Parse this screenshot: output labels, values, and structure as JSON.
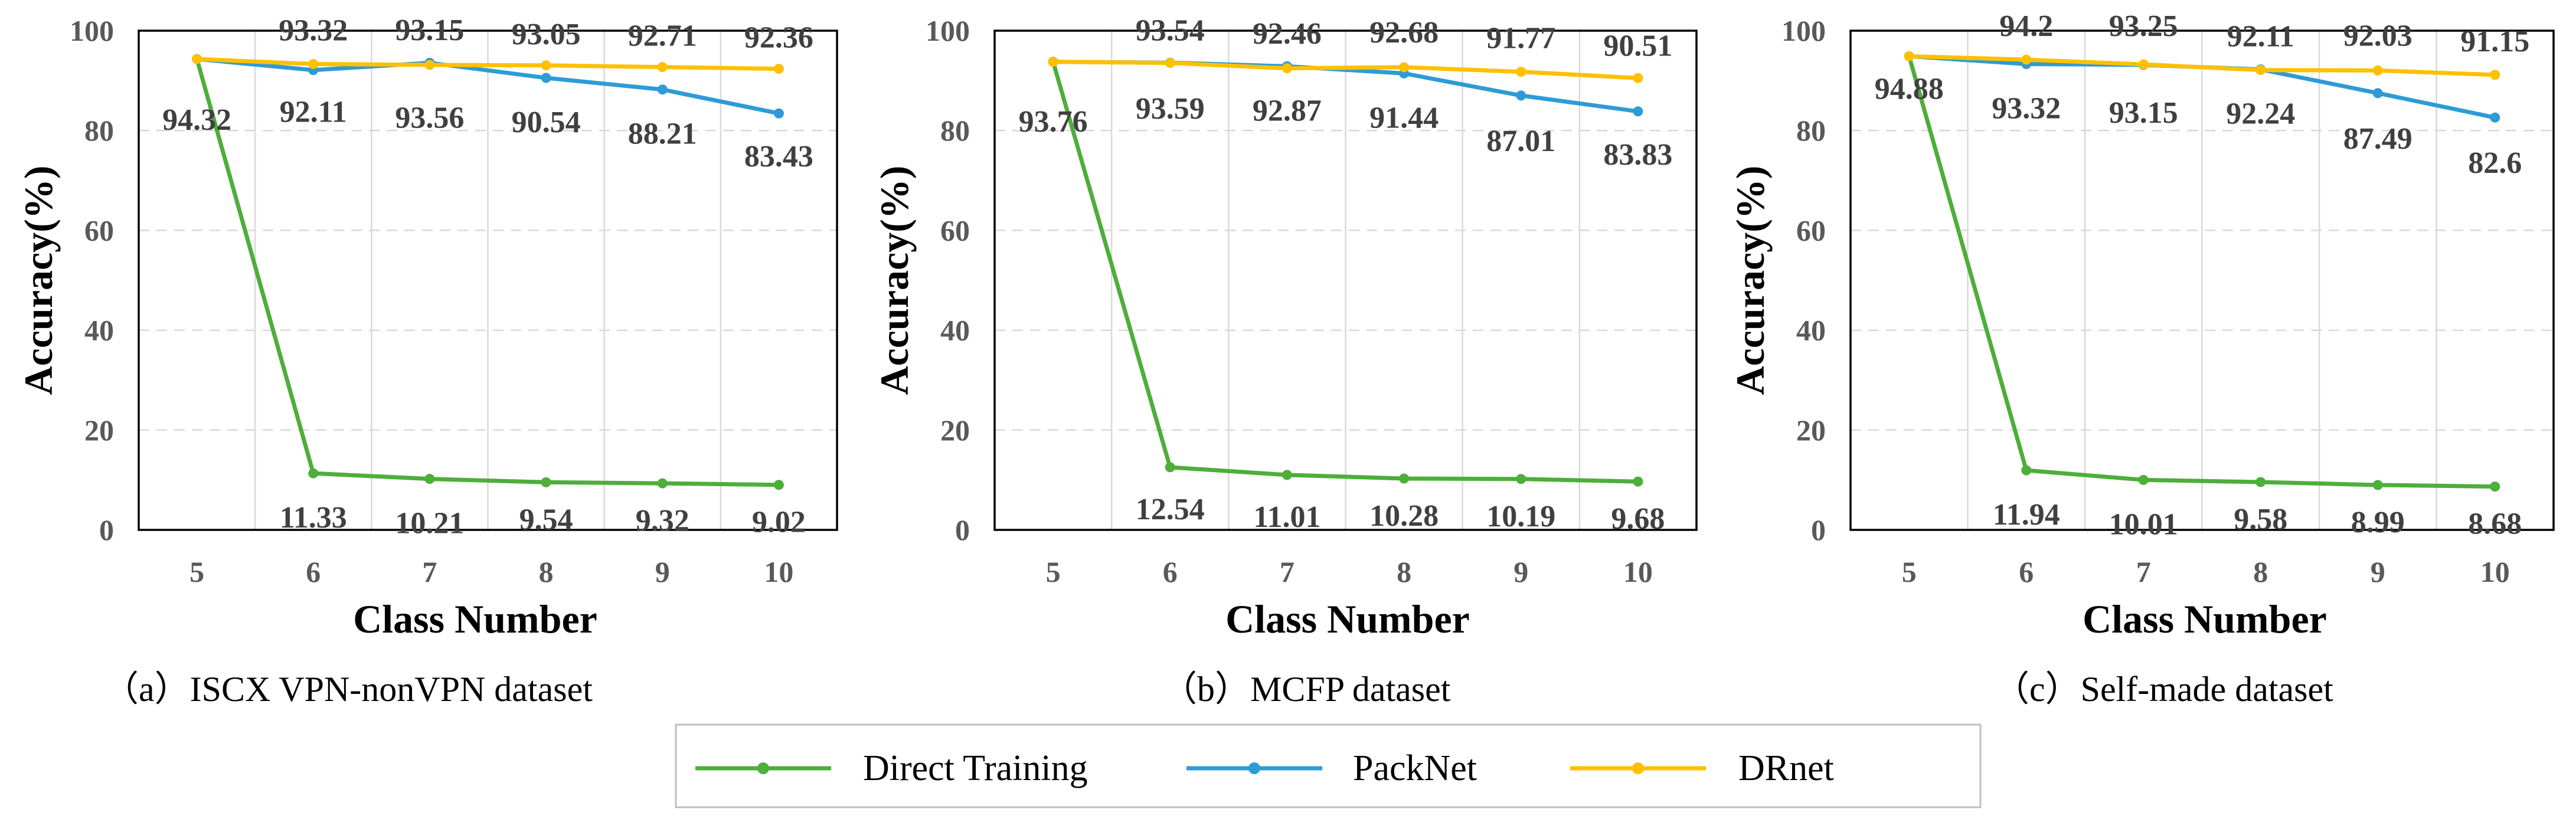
{
  "colors": {
    "direct_training": "#4DAE3A",
    "packnet": "#2E9BD6",
    "drnet": "#FFC000",
    "grid": "#D9D9D9",
    "axis": "#000000"
  },
  "legend": {
    "items": [
      {
        "key": "direct_training",
        "label": "Direct Training"
      },
      {
        "key": "packnet",
        "label": "PackNet"
      },
      {
        "key": "drnet",
        "label": "DRnet"
      }
    ]
  },
  "chart_data": [
    {
      "type": "line",
      "caption": "（a）ISCX VPN-nonVPN dataset",
      "xlabel": "Class Number",
      "ylabel": "Accuracy(%)",
      "categories": [
        "5",
        "6",
        "7",
        "8",
        "9",
        "10"
      ],
      "y_ticks": [
        "0",
        "20",
        "40",
        "60",
        "80",
        "100"
      ],
      "ylim": [
        0,
        100
      ],
      "grid": true,
      "series": [
        {
          "key": "direct_training",
          "name": "Direct Training",
          "values": [
            94.32,
            11.33,
            10.21,
            9.54,
            9.32,
            9.02
          ],
          "labels": [
            "94.32",
            "11.33",
            "10.21",
            "9.54",
            "9.32",
            "9.02"
          ]
        },
        {
          "key": "packnet",
          "name": "PackNet",
          "values": [
            94.32,
            92.11,
            93.56,
            90.54,
            88.21,
            83.43
          ],
          "labels": [
            "",
            "92.11",
            "93.56",
            "90.54",
            "88.21",
            "83.43"
          ]
        },
        {
          "key": "drnet",
          "name": "DRnet",
          "values": [
            94.32,
            93.32,
            93.15,
            93.05,
            92.71,
            92.36
          ],
          "labels": [
            "",
            "93.32",
            "93.15",
            "93.05",
            "92.71",
            "92.36"
          ]
        }
      ]
    },
    {
      "type": "line",
      "caption": "（b）MCFP dataset",
      "xlabel": "Class Number",
      "ylabel": "Accuracy(%)",
      "categories": [
        "5",
        "6",
        "7",
        "8",
        "9",
        "10"
      ],
      "y_ticks": [
        "0",
        "20",
        "40",
        "60",
        "80",
        "100"
      ],
      "ylim": [
        0,
        100
      ],
      "grid": true,
      "series": [
        {
          "key": "direct_training",
          "name": "Direct Training",
          "values": [
            93.76,
            12.54,
            11.01,
            10.28,
            10.19,
            9.68
          ],
          "labels": [
            "93.76",
            "12.54",
            "11.01",
            "10.28",
            "10.19",
            "9.68"
          ]
        },
        {
          "key": "packnet",
          "name": "PackNet",
          "values": [
            93.76,
            93.59,
            92.87,
            91.44,
            87.01,
            83.83
          ],
          "labels": [
            "",
            "93.59",
            "92.87",
            "91.44",
            "87.01",
            "83.83"
          ]
        },
        {
          "key": "drnet",
          "name": "DRnet",
          "values": [
            93.76,
            93.54,
            92.46,
            92.68,
            91.77,
            90.51
          ],
          "labels": [
            "",
            "93.54",
            "92.46",
            "92.68",
            "91.77",
            "90.51"
          ]
        }
      ]
    },
    {
      "type": "line",
      "caption": "（c）Self-made dataset",
      "xlabel": "Class Number",
      "ylabel": "Accuracy(%)",
      "categories": [
        "5",
        "6",
        "7",
        "8",
        "9",
        "10"
      ],
      "y_ticks": [
        "0",
        "20",
        "40",
        "60",
        "80",
        "100"
      ],
      "ylim": [
        0,
        100
      ],
      "grid": true,
      "series": [
        {
          "key": "direct_training",
          "name": "Direct Training",
          "values": [
            94.88,
            11.94,
            10.01,
            9.58,
            8.99,
            8.68
          ],
          "labels": [
            "94.88",
            "11.94",
            "10.01",
            "9.58",
            "8.99",
            "8.68"
          ]
        },
        {
          "key": "packnet",
          "name": "PackNet",
          "values": [
            94.88,
            93.32,
            93.15,
            92.24,
            87.49,
            82.6
          ],
          "labels": [
            "",
            "93.32",
            "93.15",
            "92.24",
            "87.49",
            "82.6"
          ]
        },
        {
          "key": "drnet",
          "name": "DRnet",
          "values": [
            94.88,
            94.2,
            93.25,
            92.11,
            92.03,
            91.15
          ],
          "labels": [
            "",
            "94.2",
            "93.25",
            "92.11",
            "92.03",
            "91.15"
          ]
        }
      ]
    }
  ]
}
